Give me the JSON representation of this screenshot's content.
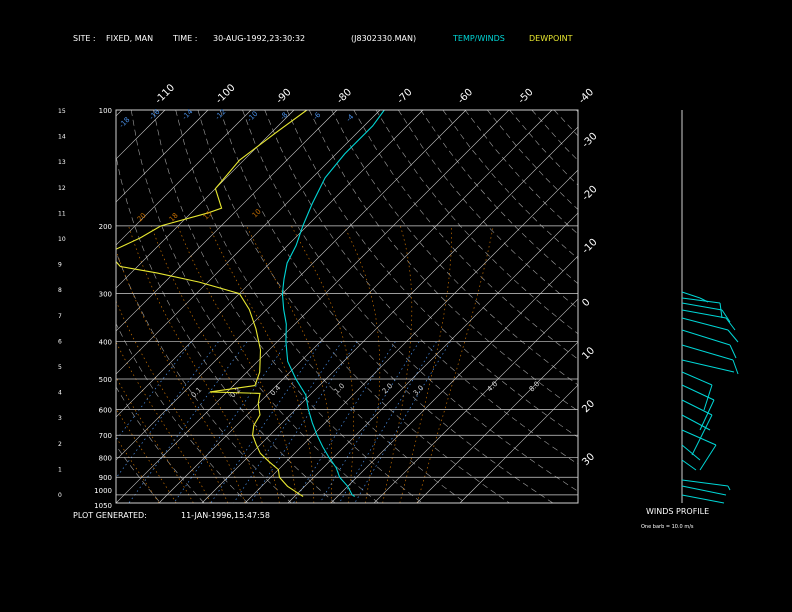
{
  "header": {
    "site_label": "SITE :",
    "site_value": "FIXED, MAN",
    "time_label": "TIME :",
    "time_value": "30-AUG-1992,23:30:32",
    "file_name": "(J8302330.MAN)",
    "temp_winds_label": "TEMP/WINDS",
    "dewpoint_label": "DEWPOINT"
  },
  "footer": {
    "plot_generated_label": "PLOT GENERATED:",
    "plot_generated_value": "11-JAN-1996,15:47:58",
    "winds_profile_label": "WINDS PROFILE",
    "barb_legend": "One barb = 10.0 m/s"
  },
  "colors": {
    "temperature": "#00d6d6",
    "dewpoint": "#e8e830",
    "isotherm": "#d0d0d0",
    "dry_adiabat": "#a0a0a0",
    "moist_adiabat": "#c87000",
    "mixing_ratio": "#4a90e8",
    "wind_barbs": "#00d6d6"
  },
  "chart_data": {
    "type": "line",
    "title": "",
    "pressure_ticks": [
      "100",
      "200",
      "300",
      "400",
      "500",
      "600",
      "700",
      "800",
      "900",
      "1000",
      "1050"
    ],
    "height_ticks": [
      "0",
      "1",
      "2",
      "3",
      "4",
      "5",
      "6",
      "7",
      "8",
      "9",
      "10",
      "11",
      "12",
      "13",
      "14",
      "15"
    ],
    "top_temp_labels": [
      "-110",
      "-100",
      "-90",
      "-80",
      "-70",
      "-60",
      "-50",
      "-40"
    ],
    "right_temp_labels": [
      "-30",
      "-20",
      "-10",
      "0",
      "10",
      "20",
      "30"
    ],
    "theta_labels": [
      "-18",
      "-16",
      "-14",
      "-12",
      "-10",
      "-8",
      "-6",
      "-4"
    ],
    "series": [
      {
        "name": "TEMP/WINDS",
        "points": [
          [
            100,
            -59
          ],
          [
            110,
            -58
          ],
          [
            130,
            -58
          ],
          [
            150,
            -57
          ],
          [
            175,
            -54
          ],
          [
            200,
            -51
          ],
          [
            225,
            -48
          ],
          [
            250,
            -46
          ],
          [
            275,
            -43
          ],
          [
            300,
            -40
          ],
          [
            330,
            -36
          ],
          [
            360,
            -32
          ],
          [
            400,
            -28
          ],
          [
            450,
            -23
          ],
          [
            500,
            -17
          ],
          [
            550,
            -11
          ],
          [
            600,
            -7
          ],
          [
            650,
            -3
          ],
          [
            700,
            1
          ],
          [
            750,
            5
          ],
          [
            800,
            9
          ],
          [
            850,
            13
          ],
          [
            900,
            16
          ],
          [
            950,
            20
          ],
          [
            1000,
            23
          ],
          [
            1010,
            24
          ]
        ]
      },
      {
        "name": "DEWPOINT",
        "points": [
          [
            100,
            -77
          ],
          [
            115,
            -79
          ],
          [
            135,
            -81
          ],
          [
            160,
            -80
          ],
          [
            180,
            -74
          ],
          [
            185,
            -76
          ],
          [
            200,
            -84
          ],
          [
            215,
            -86
          ],
          [
            235,
            -90
          ],
          [
            255,
            -84
          ],
          [
            265,
            -74
          ],
          [
            280,
            -62
          ],
          [
            300,
            -50
          ],
          [
            330,
            -44
          ],
          [
            370,
            -38
          ],
          [
            420,
            -32
          ],
          [
            480,
            -27
          ],
          [
            520,
            -25
          ],
          [
            540,
            -34
          ],
          [
            545,
            -22
          ],
          [
            580,
            -20
          ],
          [
            620,
            -17
          ],
          [
            660,
            -16
          ],
          [
            700,
            -14
          ],
          [
            740,
            -11
          ],
          [
            780,
            -8
          ],
          [
            820,
            -4
          ],
          [
            860,
            0
          ],
          [
            900,
            2
          ],
          [
            950,
            6
          ],
          [
            1000,
            11
          ],
          [
            1010,
            12
          ]
        ]
      }
    ],
    "mixing_ratio_labels": [
      "20",
      "18",
      "15",
      "10",
      "0.1",
      "0.2",
      "0.4",
      "1.0",
      "2.0",
      "3.0",
      "4.0",
      "8.0"
    ]
  }
}
